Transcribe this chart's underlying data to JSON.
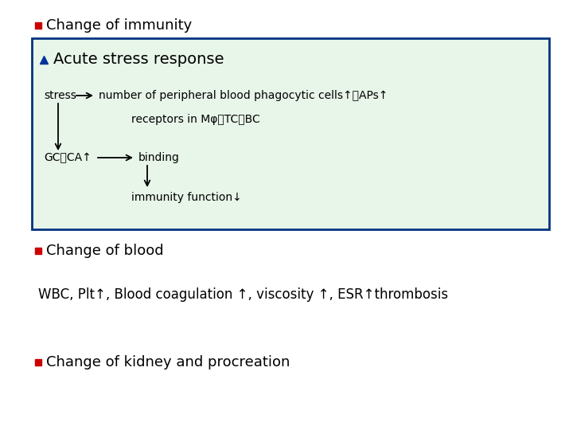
{
  "bg_color": "#ffffff",
  "title1": "Change of immunity",
  "title1_bullet_color": "#cc0000",
  "box_bg": "#e8f5e9",
  "box_border": "#003380",
  "acute_title": "Acute stress response",
  "acute_bullet_color": "#003399",
  "stress_line1": "number of peripheral blood phagocytic cells↑，APs↑",
  "stress_label": "stress",
  "receptors_line": "receptors in Mφ、TC、BC",
  "gc_label": "GC、CA↑",
  "binding_label": "binding",
  "imm_func_label": "immunity function↓",
  "title2": "Change of blood",
  "title2_bullet_color": "#cc0000",
  "blood_line": "WBC, Plt↑, Blood coagulation ↑, viscosity ↑, ESR↑thrombosis",
  "title3": "Change of kidney and procreation",
  "title3_bullet_color": "#cc0000",
  "font_size_title": 13,
  "font_size_box_title": 14,
  "font_size_body": 10,
  "font_size_blood": 12
}
